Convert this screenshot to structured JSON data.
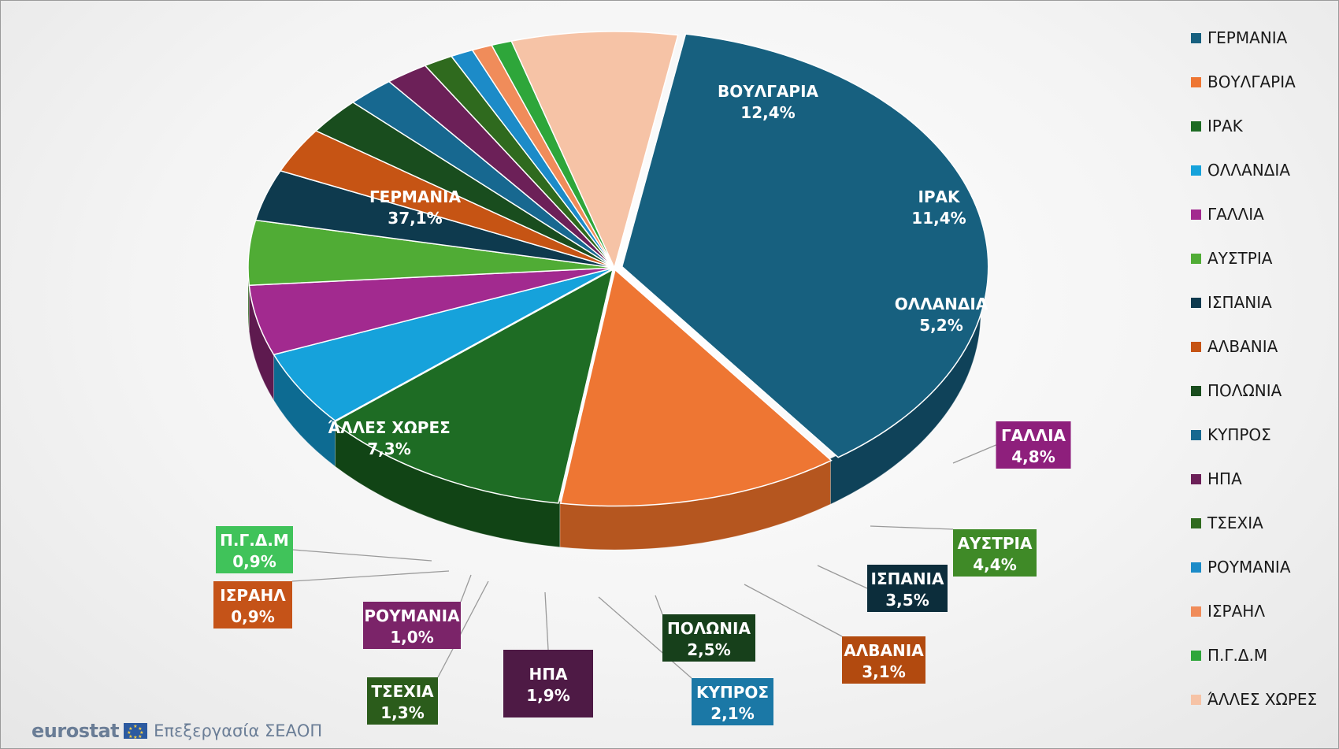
{
  "chart_data": {
    "type": "pie",
    "slices": [
      {
        "label": "ΓΕΡΜΑΝΙΑ",
        "value": 37.1,
        "value_label": "37,1%",
        "color": "#17607f",
        "dark": "#0f4259"
      },
      {
        "label": "ΒΟΥΛΓΑΡΙΑ",
        "value": 12.4,
        "value_label": "12,4%",
        "color": "#ee7633",
        "dark": "#b5561f"
      },
      {
        "label": "ΙΡΑΚ",
        "value": 11.4,
        "value_label": "11,4%",
        "color": "#1e6c24",
        "dark": "#114415"
      },
      {
        "label": "ΟΛΛΑΝΔΙΑ",
        "value": 5.2,
        "value_label": "5,2%",
        "color": "#16a2db",
        "dark": "#0d6b92"
      },
      {
        "label": "ΓΑΛΛΙΑ",
        "value": 4.8,
        "value_label": "4,8%",
        "color": "#a22a8f",
        "dark": "#5e1a4f"
      },
      {
        "label": "ΑΥΣΤΡΙΑ",
        "value": 4.4,
        "value_label": "4,4%",
        "color": "#50ac35",
        "dark": "#2f6a1e"
      },
      {
        "label": "ΙΣΠΑΝΙΑ",
        "value": 3.5,
        "value_label": "3,5%",
        "color": "#0e3a4e",
        "dark": "#061e29"
      },
      {
        "label": "ΑΛΒΑΝΙΑ",
        "value": 3.1,
        "value_label": "3,1%",
        "color": "#c65414",
        "dark": "#6e2c08"
      },
      {
        "label": "ΠΟΛΩΝΙΑ",
        "value": 2.5,
        "value_label": "2,5%",
        "color": "#194d1e",
        "dark": "#0c2a10"
      },
      {
        "label": "ΚΥΠΡΟΣ",
        "value": 2.1,
        "value_label": "2,1%",
        "color": "#176890",
        "dark": "#0b3c54"
      },
      {
        "label": "ΗΠΑ",
        "value": 1.9,
        "value_label": "1,9%",
        "color": "#6c2058",
        "dark": "#3a0f30"
      },
      {
        "label": "ΤΣΕΧΙΑ",
        "value": 1.3,
        "value_label": "1,3%",
        "color": "#2f6a1e",
        "dark": "#183a0f"
      },
      {
        "label": "ΡΟΥΜΑΝΙΑ",
        "value": 1.0,
        "value_label": "1,0%",
        "color": "#1c8bc8",
        "dark": "#0e5078"
      },
      {
        "label": "ΙΣΡΑΗΛ",
        "value": 0.9,
        "value_label": "0,9%",
        "color": "#f08c5a",
        "dark": "#b0623a"
      },
      {
        "label": "Π.Γ.Δ.Μ",
        "value": 0.9,
        "value_label": "0,9%",
        "color": "#2ea63a",
        "dark": "#1a6a22"
      },
      {
        "label": "ΆΛΛΕΣ ΧΩΡΕΣ",
        "value": 7.3,
        "value_label": "7,3%",
        "color": "#f6c3a6",
        "dark": "#a37e6a"
      }
    ]
  },
  "labels": {
    "germany": {
      "name": "ΓΕΡΜΑΝΙΑ",
      "value": "37,1%"
    },
    "bulgaria": {
      "name": "ΒΟΥΛΓΑΡΙΑ",
      "value": "12,4%"
    },
    "iraq": {
      "name": "ΙΡΑΚ",
      "value": "11,4%"
    },
    "netherlands": {
      "name": "ΟΛΛΑΝΔΙΑ",
      "value": "5,2%"
    },
    "france": {
      "name": "ΓΑΛΛΙΑ",
      "value": "4,8%"
    },
    "austria": {
      "name": "ΑΥΣΤΡΙΑ",
      "value": "4,4%"
    },
    "spain": {
      "name": "ΙΣΠΑΝΙΑ",
      "value": "3,5%"
    },
    "albania": {
      "name": "ΑΛΒΑΝΙΑ",
      "value": "3,1%"
    },
    "poland": {
      "name": "ΠΟΛΩΝΙΑ",
      "value": "2,5%"
    },
    "cyprus": {
      "name": "ΚΥΠΡΟΣ",
      "value": "2,1%"
    },
    "usa": {
      "name": "ΗΠΑ",
      "value": "1,9%"
    },
    "czechia": {
      "name": "ΤΣΕΧΙΑ",
      "value": "1,3%"
    },
    "romania": {
      "name": "ΡΟΥΜΑΝΙΑ",
      "value": "1,0%"
    },
    "israel": {
      "name": "ΙΣΡΑΗΛ",
      "value": "0,9%"
    },
    "fyrom": {
      "name": "Π.Γ.Δ.Μ",
      "value": "0,9%"
    },
    "other": {
      "name": "ΆΛΛΕΣ ΧΩΡΕΣ",
      "value": "7,3%"
    }
  },
  "legend": [
    {
      "label": "ΓΕΡΜΑΝΙΑ",
      "color": "#17607f"
    },
    {
      "label": "ΒΟΥΛΓΑΡΙΑ",
      "color": "#ee7633"
    },
    {
      "label": "ΙΡΑΚ",
      "color": "#1e6c24"
    },
    {
      "label": "ΟΛΛΑΝΔΙΑ",
      "color": "#16a2db"
    },
    {
      "label": "ΓΑΛΛΙΑ",
      "color": "#a22a8f"
    },
    {
      "label": "ΑΥΣΤΡΙΑ",
      "color": "#50ac35"
    },
    {
      "label": "ΙΣΠΑΝΙΑ",
      "color": "#0e3a4e"
    },
    {
      "label": "ΑΛΒΑΝΙΑ",
      "color": "#c65414"
    },
    {
      "label": "ΠΟΛΩΝΙΑ",
      "color": "#194d1e"
    },
    {
      "label": "ΚΥΠΡΟΣ",
      "color": "#176890"
    },
    {
      "label": "ΗΠΑ",
      "color": "#6c2058"
    },
    {
      "label": "ΤΣΕΧΙΑ",
      "color": "#2f6a1e"
    },
    {
      "label": "ΡΟΥΜΑΝΙΑ",
      "color": "#1c8bc8"
    },
    {
      "label": "ΙΣΡΑΗΛ",
      "color": "#f08c5a"
    },
    {
      "label": "Π.Γ.Δ.Μ",
      "color": "#2ea63a"
    },
    {
      "label": "ΆΛΛΕΣ ΧΩΡΕΣ",
      "color": "#f6c3a6"
    }
  ],
  "footer": {
    "brand": "eurostat",
    "processed_by": "Επεξεργασία ΣΕΑΟΠ"
  }
}
